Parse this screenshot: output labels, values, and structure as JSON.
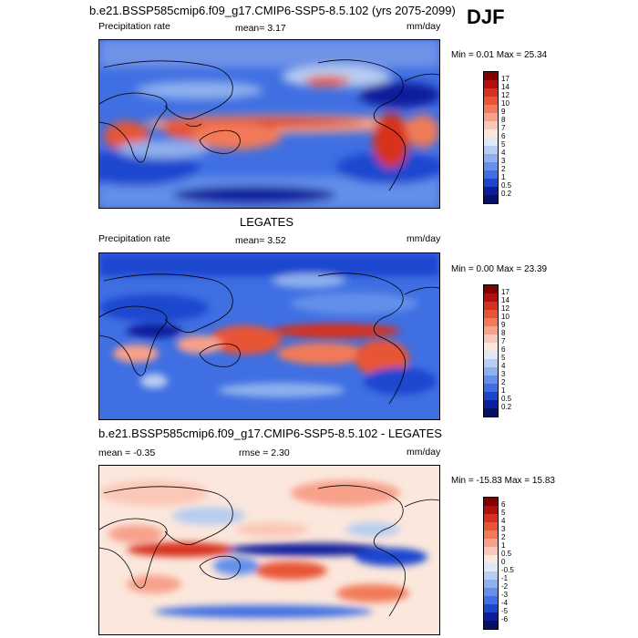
{
  "season": "DJF",
  "panels": [
    {
      "title": "b.e21.BSSP585cmip6.f09_g17.CMIP6-SSP5-8.5.102 (yrs 2075-2099)",
      "left_label": "Precipitation rate",
      "center_label": "mean=  3.17",
      "right_label": "mm/day",
      "stats": "Min =  0.01 Max =  25.34",
      "colorbar_labels": [
        "17",
        "14",
        "12",
        "10",
        "9",
        "8",
        "7",
        "6",
        "5",
        "4",
        "3",
        "2",
        "1",
        "0.5",
        "0.2"
      ],
      "colors": [
        "#800000",
        "#b30f0f",
        "#d7301f",
        "#e85535",
        "#f27a58",
        "#f7a08a",
        "#fbc7b8",
        "#fbe7dc",
        "#dfe8f5",
        "#b8cdf0",
        "#8fb0ee",
        "#6490ea",
        "#3f6fe2",
        "#1d46cf",
        "#0b1e9c",
        "#051066"
      ]
    },
    {
      "title": "LEGATES",
      "left_label": "Precipitation rate",
      "center_label": "mean=  3.52",
      "right_label": "mm/day",
      "stats": "Min =  0.00 Max =  23.39",
      "colorbar_labels": [
        "17",
        "14",
        "12",
        "10",
        "9",
        "8",
        "7",
        "6",
        "5",
        "4",
        "3",
        "2",
        "1",
        "0.5",
        "0.2"
      ],
      "colors": [
        "#800000",
        "#b30f0f",
        "#d7301f",
        "#e85535",
        "#f27a58",
        "#f7a08a",
        "#fbc7b8",
        "#fbe7dc",
        "#dfe8f5",
        "#b8cdf0",
        "#8fb0ee",
        "#6490ea",
        "#3f6fe2",
        "#1d46cf",
        "#0b1e9c",
        "#051066"
      ]
    },
    {
      "title": "b.e21.BSSP585cmip6.f09_g17.CMIP6-SSP5-8.5.102 - LEGATES",
      "left_label": "mean =  -0.35",
      "center_label": "rmse =  2.30",
      "right_label": "mm/day",
      "stats": "Min = -15.83 Max =  15.83",
      "colorbar_labels": [
        "6",
        "5",
        "4",
        "3",
        "2",
        "1",
        "0.5",
        "0",
        "-0.5",
        "-1",
        "-2",
        "-3",
        "-4",
        "-5",
        "-6"
      ],
      "colors": [
        "#800000",
        "#b30f0f",
        "#d7301f",
        "#e85535",
        "#f27a58",
        "#f7a08a",
        "#fbc7b8",
        "#fbe7dc",
        "#dfe8f5",
        "#b8cdf0",
        "#8fb0ee",
        "#6490ea",
        "#3f6fe2",
        "#1d46cf",
        "#0b1e9c",
        "#051066"
      ]
    }
  ]
}
